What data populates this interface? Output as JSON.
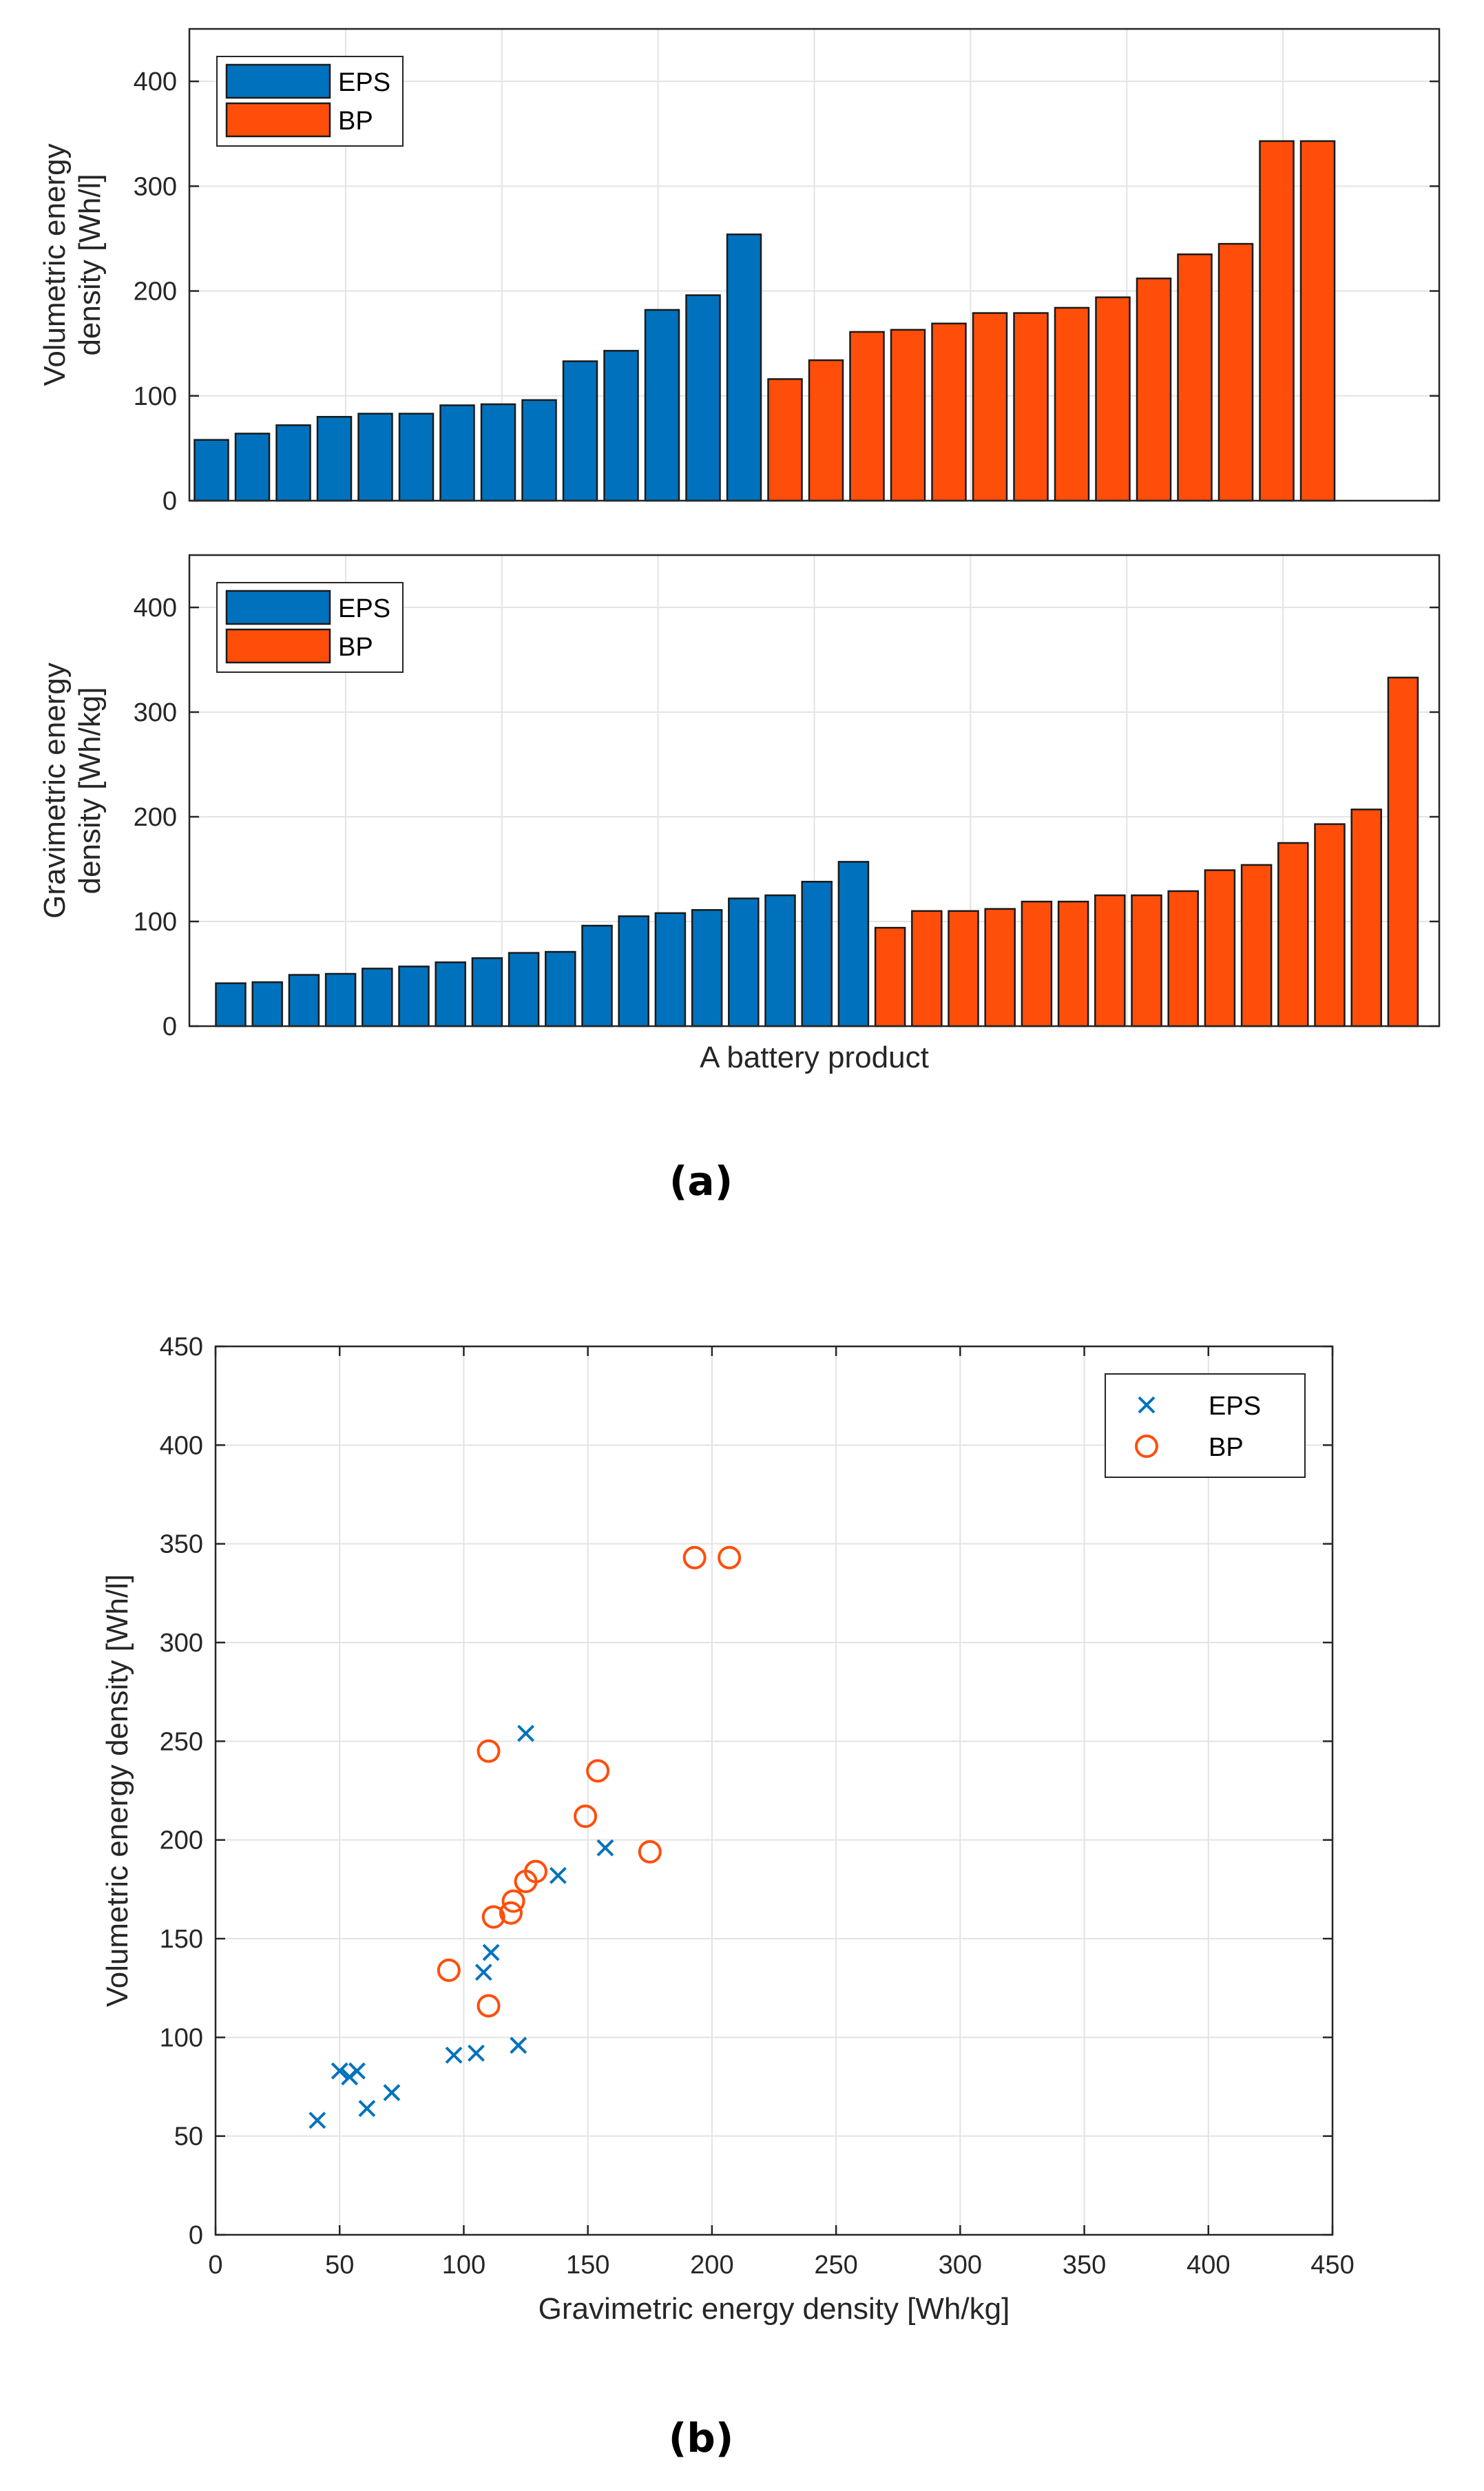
{
  "colors": {
    "eps": "#0072BD",
    "bp": "#FF4E0A"
  },
  "captions": {
    "a": "(a)",
    "b": "(b)"
  },
  "chart_data": [
    {
      "type": "bar",
      "title": "",
      "xlabel": "",
      "ylabel": [
        "Volumetric energy",
        "density [Wh/l]"
      ],
      "ylim": [
        0,
        450
      ],
      "yticks": [
        0,
        100,
        200,
        300,
        400
      ],
      "grid": true,
      "legend_position": "top-left",
      "series": [
        {
          "name": "EPS",
          "values": [
            58,
            64,
            72,
            80,
            83,
            83,
            91,
            92,
            96,
            133,
            143,
            182,
            196,
            254
          ]
        },
        {
          "name": "BP",
          "values": [
            116,
            134,
            161,
            163,
            169,
            179,
            179,
            184,
            194,
            212,
            235,
            245,
            343,
            343
          ]
        }
      ]
    },
    {
      "type": "bar",
      "title": "",
      "xlabel": "A battery product",
      "ylabel": [
        "Gravimetric energy",
        "density [Wh/kg]"
      ],
      "ylim": [
        0,
        450
      ],
      "yticks": [
        0,
        100,
        200,
        300,
        400
      ],
      "grid": true,
      "legend_position": "top-left",
      "series": [
        {
          "name": "EPS",
          "values": [
            41,
            42,
            49,
            50,
            55,
            57,
            61,
            65,
            70,
            71,
            96,
            105,
            108,
            111,
            122,
            125,
            138,
            157
          ]
        },
        {
          "name": "BP",
          "values": [
            94,
            110,
            110,
            112,
            119,
            119,
            125,
            125,
            129,
            149,
            154,
            175,
            193,
            207,
            333
          ]
        }
      ]
    },
    {
      "type": "scatter",
      "title": "",
      "xlabel": "Gravimetric energy density [Wh/kg]",
      "ylabel": "Volumetric energy density [Wh/l]",
      "xlim": [
        0,
        450
      ],
      "ylim": [
        0,
        450
      ],
      "xticks": [
        0,
        50,
        100,
        150,
        200,
        250,
        300,
        350,
        400,
        450
      ],
      "yticks": [
        0,
        50,
        100,
        150,
        200,
        250,
        300,
        350,
        400,
        450
      ],
      "grid": true,
      "legend_position": "top-right",
      "series": [
        {
          "name": "EPS",
          "marker": "x",
          "points": [
            {
              "x": 41,
              "y": 58
            },
            {
              "x": 50,
              "y": 83
            },
            {
              "x": 54,
              "y": 80
            },
            {
              "x": 57,
              "y": 83
            },
            {
              "x": 61,
              "y": 64
            },
            {
              "x": 71,
              "y": 72
            },
            {
              "x": 96,
              "y": 91
            },
            {
              "x": 105,
              "y": 92
            },
            {
              "x": 108,
              "y": 133
            },
            {
              "x": 111,
              "y": 143
            },
            {
              "x": 122,
              "y": 96
            },
            {
              "x": 125,
              "y": 254
            },
            {
              "x": 138,
              "y": 182
            },
            {
              "x": 157,
              "y": 196
            }
          ]
        },
        {
          "name": "BP",
          "marker": "o",
          "points": [
            {
              "x": 94,
              "y": 134
            },
            {
              "x": 110,
              "y": 116
            },
            {
              "x": 110,
              "y": 245
            },
            {
              "x": 112,
              "y": 161
            },
            {
              "x": 119,
              "y": 163
            },
            {
              "x": 120,
              "y": 169
            },
            {
              "x": 125,
              "y": 179
            },
            {
              "x": 129,
              "y": 184
            },
            {
              "x": 149,
              "y": 212
            },
            {
              "x": 154,
              "y": 235
            },
            {
              "x": 175,
              "y": 194
            },
            {
              "x": 193,
              "y": 343
            },
            {
              "x": 207,
              "y": 343
            }
          ]
        }
      ]
    }
  ]
}
